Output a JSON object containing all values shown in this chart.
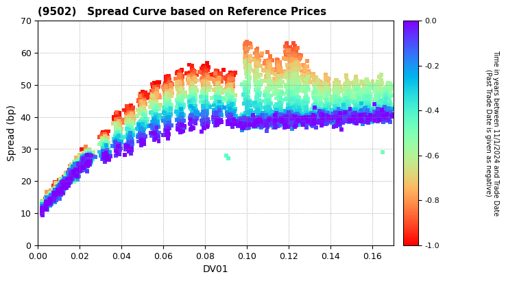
{
  "title": "(9502)   Spread Curve based on Reference Prices",
  "xlabel": "DV01",
  "ylabel": "Spread (bp)",
  "colorbar_label": "Time in years between 11/1/2024 and Trade Date\n(Past Trade Date is given as negative)",
  "colorbar_ticks": [
    0.0,
    -0.2,
    -0.4,
    -0.6,
    -0.8,
    -1.0
  ],
  "xlim": [
    0.0,
    0.17
  ],
  "ylim": [
    0,
    70
  ],
  "xticks": [
    0.0,
    0.02,
    0.04,
    0.06,
    0.08,
    0.1,
    0.12,
    0.14,
    0.16
  ],
  "yticks": [
    0,
    10,
    20,
    30,
    40,
    50,
    60,
    70
  ],
  "background_color": "#ffffff",
  "grid_color": "#888888",
  "marker_size": 18,
  "cmap": "rainbow_r"
}
